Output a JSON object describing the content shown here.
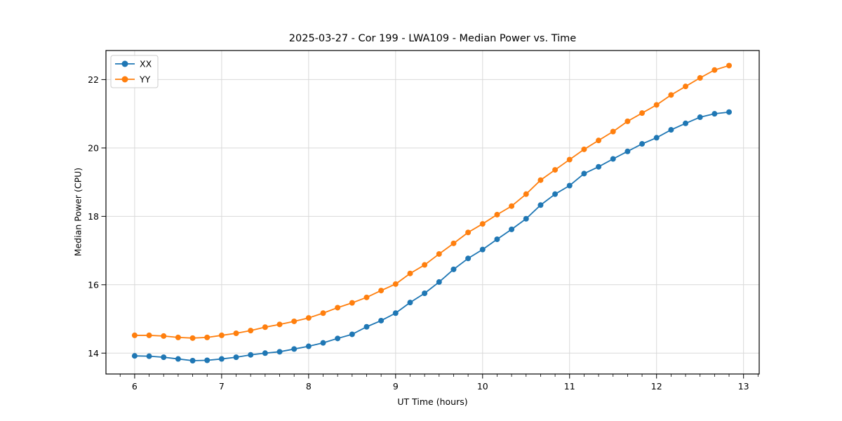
{
  "chart_data": {
    "type": "line",
    "title": "2025-03-27 - Cor 199 - LWA109 - Median Power vs. Time",
    "xlabel": "UT Time (hours)",
    "ylabel": "Median Power (CPU)",
    "xlim": [
      5.67,
      13.18
    ],
    "ylim": [
      13.39,
      22.85
    ],
    "x_major_ticks": [
      6,
      7,
      8,
      9,
      10,
      11,
      12,
      13
    ],
    "x_minor_step_hours": 0.16667,
    "y_major_ticks": [
      14,
      16,
      18,
      20,
      22
    ],
    "grid": "major-only",
    "grid_color": "#d9d9d9",
    "spine_color": "#000000",
    "background_color": "#ffffff",
    "marker_style": "circle",
    "sample_interval_minutes": 10,
    "legend": {
      "position": "upper-left",
      "entries": [
        {
          "label": "XX",
          "color": "#1f77b4"
        },
        {
          "label": "YY",
          "color": "#ff7f0e"
        }
      ]
    },
    "x": [
      6.0,
      6.1667,
      6.3333,
      6.5,
      6.6667,
      6.8333,
      7.0,
      7.1667,
      7.3333,
      7.5,
      7.6667,
      7.8333,
      8.0,
      8.1667,
      8.3333,
      8.5,
      8.6667,
      8.8333,
      9.0,
      9.1667,
      9.3333,
      9.5,
      9.6667,
      9.8333,
      10.0,
      10.1667,
      10.3333,
      10.5,
      10.6667,
      10.8333,
      11.0,
      11.1667,
      11.3333,
      11.5,
      11.6667,
      11.8333,
      12.0,
      12.1667,
      12.3333,
      12.5,
      12.6667,
      12.8333
    ],
    "series": [
      {
        "name": "XX",
        "color": "#1f77b4",
        "values": [
          13.92,
          13.91,
          13.88,
          13.83,
          13.78,
          13.79,
          13.83,
          13.88,
          13.95,
          14.0,
          14.04,
          14.12,
          14.2,
          14.3,
          14.43,
          14.55,
          14.77,
          14.95,
          15.17,
          15.48,
          15.75,
          16.08,
          16.45,
          16.77,
          17.03,
          17.33,
          17.62,
          17.93,
          18.33,
          18.65,
          18.9,
          19.25,
          19.45,
          19.68,
          19.9,
          20.12,
          20.3,
          20.53,
          20.72,
          20.9,
          21.0,
          21.05
        ]
      },
      {
        "name": "YY",
        "color": "#ff7f0e",
        "values": [
          14.52,
          14.52,
          14.5,
          14.46,
          14.44,
          14.46,
          14.52,
          14.58,
          14.66,
          14.76,
          14.84,
          14.93,
          15.03,
          15.17,
          15.33,
          15.47,
          15.63,
          15.83,
          16.02,
          16.33,
          16.58,
          16.9,
          17.21,
          17.53,
          17.78,
          18.05,
          18.3,
          18.65,
          19.06,
          19.36,
          19.66,
          19.96,
          20.22,
          20.48,
          20.78,
          21.02,
          21.26,
          21.55,
          21.8,
          22.05,
          22.28,
          22.41
        ]
      }
    ]
  }
}
